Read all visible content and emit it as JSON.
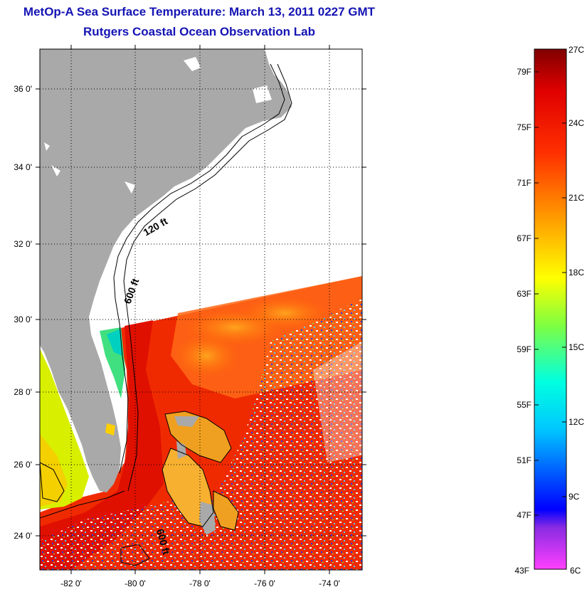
{
  "title": "MetOp-A Sea Surface Temperature:  March 13, 2011 0227 GMT",
  "subtitle": "Rutgers Coastal Ocean Observation Lab",
  "map": {
    "longitude_ticks": [
      "-82 0'",
      "-80 0'",
      "-78 0'",
      "-76 0'",
      "-74 0'"
    ],
    "latitude_ticks": [
      "36 0'",
      "34 0'",
      "32 0'",
      "30 0'",
      "28 0'",
      "26 0'",
      "24 0'"
    ],
    "land_color": "#a9a9a9",
    "isobath_labels": [
      "120 ft",
      "600 ft",
      "600 ft"
    ]
  },
  "colorbar": {
    "fahrenheit_ticks": [
      "79F",
      "75F",
      "71F",
      "67F",
      "63F",
      "59F",
      "55F",
      "51F",
      "47F",
      "43F"
    ],
    "celsius_ticks": [
      "27C",
      "24C",
      "21C",
      "18C",
      "15C",
      "12C",
      "9C",
      "6C"
    ],
    "colors": [
      "#ff00ff",
      "#0000ff",
      "#00ffff",
      "#ffff00",
      "#ff8000",
      "#ff0000",
      "#800000"
    ]
  }
}
